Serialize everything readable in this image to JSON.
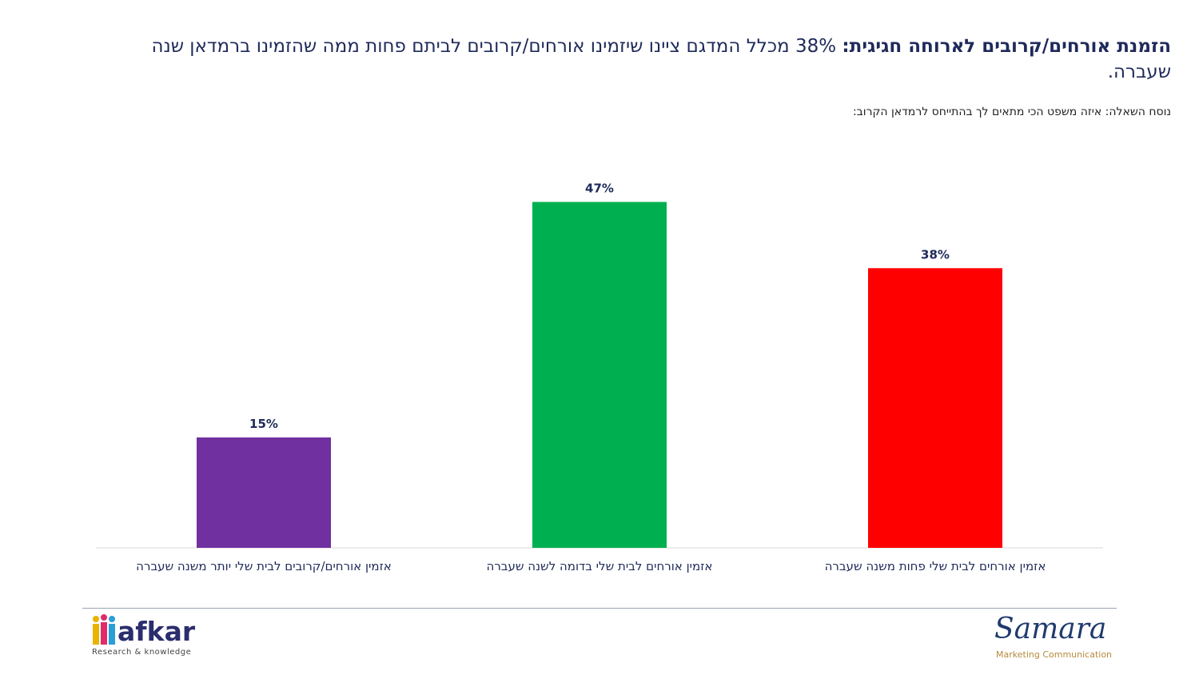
{
  "headline": {
    "bold": "הזמנת אורחים/קרובים לארוחה חגיגית:",
    "rest": " 38% מכלל המדגם ציינו שיזמינו אורחים/קרובים לביתם פחות ממה שהזמינו ברמדאן שנה שעברה."
  },
  "question": "נוסח השאלה: איזה משפט הכי מתאים לך בהתייחס לרמדאן הקרוב:",
  "chart_data": {
    "type": "bar",
    "categories": [
      "אזמין אורחים/קרובים לבית שלי יותר משנה שעברה",
      "אזמין אורחים לבית שלי בדומה לשנה שעברה",
      "אזמין אורחים לבית שלי פחות משנה שעברה"
    ],
    "values": [
      15,
      47,
      38
    ],
    "value_labels": [
      "15%",
      "47%",
      "38%"
    ],
    "colors": [
      "#7030A0",
      "#00B050",
      "#FF0000"
    ],
    "ylim": [
      0,
      50
    ],
    "grid": false,
    "legend": "none"
  },
  "logos": {
    "afkar": {
      "name": "afkar",
      "tagline": "Research & knowledge"
    },
    "samara": {
      "name": "Samara",
      "tagline": "Marketing Communication"
    }
  }
}
